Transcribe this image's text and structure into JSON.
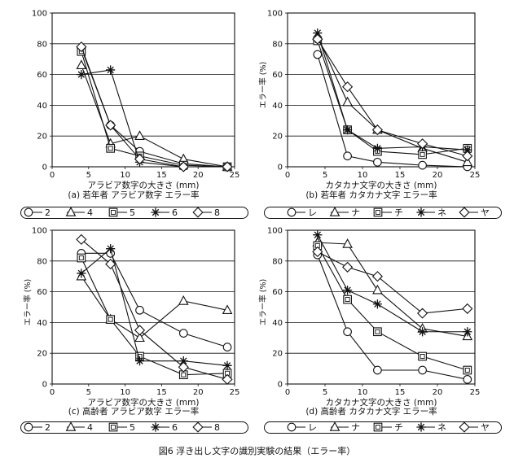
{
  "figure": {
    "caption": "図6  浮き出し文字の識別実験の結果（エラー率）"
  },
  "chart_data": [
    {
      "type": "line",
      "subtitle": "(a) 若年者  アラビア数字  エラー率",
      "xlabel": "アラビア数字の大きさ (mm)",
      "ylabel": "",
      "xlim": [
        0,
        25
      ],
      "ylim": [
        0,
        100
      ],
      "xticks": [
        "0",
        "5",
        "10",
        "15",
        "20",
        "25"
      ],
      "yticks": [
        "0",
        "20",
        "40",
        "60",
        "80",
        "100"
      ],
      "grid": "horizontal",
      "legend": "below",
      "x": [
        4,
        8,
        12,
        18,
        24
      ],
      "series": [
        {
          "name": "2",
          "marker": "circle",
          "values": [
            77,
            27,
            10,
            2,
            0
          ]
        },
        {
          "name": "4",
          "marker": "triangle",
          "values": [
            66,
            15,
            20,
            5,
            0
          ]
        },
        {
          "name": "5",
          "marker": "square",
          "values": [
            75,
            12,
            7,
            1,
            0
          ]
        },
        {
          "name": "6",
          "marker": "asterisk",
          "values": [
            60,
            63,
            3,
            0,
            0
          ]
        },
        {
          "name": "8",
          "marker": "diamond",
          "values": [
            78,
            27,
            5,
            0,
            0
          ]
        }
      ]
    },
    {
      "type": "line",
      "subtitle": "(b) 若年者  カタカナ文字  エラー率",
      "xlabel": "カタカナ文字の大きさ (mm)",
      "ylabel": "エラー率 (%)",
      "xlim": [
        0,
        25
      ],
      "ylim": [
        0,
        100
      ],
      "xticks": [
        "0",
        "5",
        "10",
        "15",
        "20",
        "25"
      ],
      "yticks": [
        "0",
        "20",
        "40",
        "60",
        "80",
        "100"
      ],
      "grid": "horizontal",
      "legend": "below",
      "x": [
        4,
        8,
        12,
        18,
        24
      ],
      "series": [
        {
          "name": "レ",
          "marker": "circle",
          "values": [
            73,
            7,
            3,
            1,
            0
          ]
        },
        {
          "name": "ナ",
          "marker": "triangle",
          "values": [
            85,
            42,
            24,
            12,
            3
          ]
        },
        {
          "name": "チ",
          "marker": "square",
          "values": [
            82,
            24,
            10,
            8,
            12
          ]
        },
        {
          "name": "ネ",
          "marker": "asterisk",
          "values": [
            87,
            24,
            12,
            13,
            11
          ]
        },
        {
          "name": "ヤ",
          "marker": "diamond",
          "values": [
            83,
            52,
            24,
            15,
            7
          ]
        }
      ]
    },
    {
      "type": "line",
      "subtitle": "(c) 高齢者  アラビア数字  エラー率",
      "xlabel": "アラビア数字の大きさ (mm)",
      "ylabel": "エラー率 (%)",
      "xlim": [
        0,
        25
      ],
      "ylim": [
        0,
        100
      ],
      "xticks": [
        "0",
        "5",
        "10",
        "15",
        "20",
        "25"
      ],
      "yticks": [
        "0",
        "20",
        "40",
        "60",
        "80",
        "100"
      ],
      "grid": "horizontal",
      "legend": "below",
      "x": [
        4,
        8,
        12,
        18,
        24
      ],
      "series": [
        {
          "name": "2",
          "marker": "circle",
          "values": [
            85,
            85,
            48,
            33,
            24
          ]
        },
        {
          "name": "4",
          "marker": "triangle",
          "values": [
            70,
            42,
            30,
            54,
            48
          ]
        },
        {
          "name": "5",
          "marker": "square",
          "values": [
            82,
            42,
            18,
            6,
            7
          ]
        },
        {
          "name": "6",
          "marker": "asterisk",
          "values": [
            72,
            88,
            15,
            15,
            12
          ]
        },
        {
          "name": "8",
          "marker": "diamond",
          "values": [
            94,
            78,
            35,
            11,
            3
          ]
        }
      ]
    },
    {
      "type": "line",
      "subtitle": "(d) 高齢者  カタカナ文字  エラー率",
      "xlabel": "カタカナ文字の大きさ (mm)",
      "ylabel": "エラー率 (%)",
      "xlim": [
        0,
        25
      ],
      "ylim": [
        0,
        100
      ],
      "xticks": [
        "0",
        "5",
        "10",
        "15",
        "20",
        "25"
      ],
      "yticks": [
        "0",
        "20",
        "40",
        "60",
        "80",
        "100"
      ],
      "grid": "horizontal",
      "legend": "below",
      "x": [
        4,
        8,
        12,
        18,
        24
      ],
      "series": [
        {
          "name": "レ",
          "marker": "circle",
          "values": [
            84,
            34,
            9,
            9,
            3
          ]
        },
        {
          "name": "ナ",
          "marker": "triangle",
          "values": [
            92,
            91,
            61,
            36,
            31
          ]
        },
        {
          "name": "チ",
          "marker": "square",
          "values": [
            90,
            55,
            34,
            18,
            9
          ]
        },
        {
          "name": "ネ",
          "marker": "asterisk",
          "values": [
            97,
            61,
            52,
            34,
            34
          ]
        },
        {
          "name": "ヤ",
          "marker": "diamond",
          "values": [
            86,
            76,
            70,
            46,
            49
          ]
        }
      ]
    }
  ]
}
